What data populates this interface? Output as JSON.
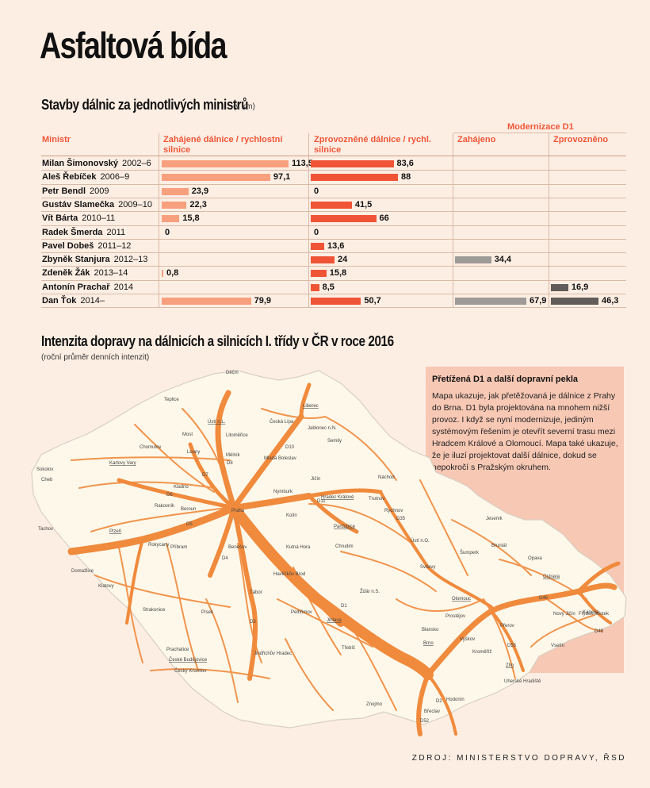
{
  "title": "Asfaltová bída",
  "table_section": {
    "title": "Stavby dálnic za jednotlivých ministrů",
    "unit": "(v km)"
  },
  "headers": {
    "minister": "Ministr",
    "started": "Zahájené dálnice / rychlostní silnice",
    "opened": "Zprovozněné dálnice / rychl. silnice",
    "d1_group": "Modernizace D1",
    "d1_started": "Zahájeno",
    "d1_opened": "Zprovozněno"
  },
  "rows": [
    {
      "name": "Milan Šimonovský",
      "term": "2002–6",
      "started": "113,5",
      "opened": "83,6",
      "d1_started": "",
      "d1_opened": ""
    },
    {
      "name": "Aleš Řebíček",
      "term": "2006–9",
      "started": "97,1",
      "opened": "88",
      "d1_started": "",
      "d1_opened": ""
    },
    {
      "name": "Petr Bendl",
      "term": "2009",
      "started": "23,9",
      "opened": "0",
      "d1_started": "",
      "d1_opened": ""
    },
    {
      "name": "Gustáv Slamečka",
      "term": "2009–10",
      "started": "22,3",
      "opened": "41,5",
      "d1_started": "",
      "d1_opened": ""
    },
    {
      "name": "Vít Bárta",
      "term": "2010–11",
      "started": "15,8",
      "opened": "66",
      "d1_started": "",
      "d1_opened": ""
    },
    {
      "name": "Radek Šmerda",
      "term": "2011",
      "started": "0",
      "opened": "0",
      "d1_started": "",
      "d1_opened": ""
    },
    {
      "name": "Pavel Dobeš",
      "term": "2011–12",
      "started": "",
      "opened": "13,6",
      "d1_started": "",
      "d1_opened": ""
    },
    {
      "name": "Zbyněk Stanjura",
      "term": "2012–13",
      "started": "",
      "opened": "24",
      "d1_started": "34,4",
      "d1_opened": ""
    },
    {
      "name": "Zdeněk Žák",
      "term": "2013–14",
      "started": "0,8",
      "opened": "15,8",
      "d1_started": "",
      "d1_opened": ""
    },
    {
      "name": "Antonín Prachař",
      "term": "2014",
      "started": "",
      "opened": "8,5",
      "d1_started": "",
      "d1_opened": "16,9"
    },
    {
      "name": "Dan Ťok",
      "term": "2014–",
      "started": "79,9",
      "opened": "50,7",
      "d1_started": "67,9",
      "d1_opened": "46,3"
    }
  ],
  "chart_data": {
    "type": "bar",
    "categories": [
      "Milan Šimonovský",
      "Aleš Řebíček",
      "Petr Bendl",
      "Gustáv Slamečka",
      "Vít Bárta",
      "Radek Šmerda",
      "Pavel Dobeš",
      "Zbyněk Stanjura",
      "Zdeněk Žák",
      "Antonín Prachař",
      "Dan Ťok"
    ],
    "series": [
      {
        "name": "Zahájené dálnice / rychlostní silnice",
        "values": [
          113.5,
          97.1,
          23.9,
          22.3,
          15.8,
          0,
          null,
          null,
          0.8,
          null,
          79.9
        ],
        "color": "#f7a07e"
      },
      {
        "name": "Zprovozněné dálnice / rychl. silnice",
        "values": [
          83.6,
          88,
          0,
          41.5,
          66,
          0,
          13.6,
          24,
          15.8,
          8.5,
          50.7
        ],
        "color": "#ef5436"
      },
      {
        "name": "Zahájeno",
        "values": [
          null,
          null,
          null,
          null,
          null,
          null,
          null,
          34.4,
          null,
          null,
          67.9
        ],
        "color": "#9e9a98"
      },
      {
        "name": "Zprovozněno",
        "values": [
          null,
          null,
          null,
          null,
          null,
          null,
          null,
          null,
          null,
          16.9,
          46.3
        ],
        "color": "#615b59"
      }
    ],
    "orientation": "horizontal",
    "unit": "km"
  },
  "map_section": {
    "title": "Intenzita dopravy na dálnicích a silnicích I. třídy v ČR v roce 2016",
    "subtitle": "(roční průměr denních intenzit)"
  },
  "infobox": {
    "title": "Přetížená D1 a další dopravní pekla",
    "text": "Mapa ukazuje, jak přetěžovaná je dálnice z Prahy do Brna. D1 byla projektována na mnohem nižší provoz. I když se nyní modernizuje, jediným systémovým řešením je otevřít severní trasu mezi Hradcem Králové a Olomoucí. Mapa také ukazuje, že je iluzí projektovat další dálnice, dokud se nepokročí s Pražským okruhem."
  },
  "cities": [
    {
      "name": "Děčín",
      "u": false
    },
    {
      "name": "Liberec",
      "u": true
    },
    {
      "name": "Teplice",
      "u": false
    },
    {
      "name": "Ústí n.L.",
      "u": true
    },
    {
      "name": "Česká Lípa",
      "u": false
    },
    {
      "name": "Jablonec n.N.",
      "u": false
    },
    {
      "name": "Semily",
      "u": false
    },
    {
      "name": "Chomutov",
      "u": false
    },
    {
      "name": "Most",
      "u": false
    },
    {
      "name": "Litoměřice",
      "u": false
    },
    {
      "name": "Louny",
      "u": false
    },
    {
      "name": "Sokolov",
      "u": false
    },
    {
      "name": "Karlovy Vary",
      "u": true
    },
    {
      "name": "Mělník",
      "u": false
    },
    {
      "name": "Mladá Boleslav",
      "u": false
    },
    {
      "name": "Jičín",
      "u": false
    },
    {
      "name": "Náchod",
      "u": false
    },
    {
      "name": "Cheb",
      "u": false
    },
    {
      "name": "Rakovník",
      "u": false
    },
    {
      "name": "Kladno",
      "u": false
    },
    {
      "name": "Nymburk",
      "u": false
    },
    {
      "name": "Hradec Králové",
      "u": true
    },
    {
      "name": "Trutnov",
      "u": false
    },
    {
      "name": "Beroun",
      "u": false
    },
    {
      "name": "Praha",
      "u": false
    },
    {
      "name": "Kolín",
      "u": false
    },
    {
      "name": "Pardubice",
      "u": true
    },
    {
      "name": "Rychnov",
      "u": false
    },
    {
      "name": "Jeseník",
      "u": false
    },
    {
      "name": "Tachov",
      "u": false
    },
    {
      "name": "Plzeň",
      "u": true
    },
    {
      "name": "Rokycany",
      "u": false
    },
    {
      "name": "Příbram",
      "u": false
    },
    {
      "name": "Benešov",
      "u": false
    },
    {
      "name": "Kutná Hora",
      "u": false
    },
    {
      "name": "Chrudim",
      "u": false
    },
    {
      "name": "Ústí n.O.",
      "u": false
    },
    {
      "name": "Bruntál",
      "u": false
    },
    {
      "name": "Šumperk",
      "u": false
    },
    {
      "name": "Opava",
      "u": false
    },
    {
      "name": "Domažlice",
      "u": false
    },
    {
      "name": "Havlíčkův Brod",
      "u": false
    },
    {
      "name": "Svitavy",
      "u": false
    },
    {
      "name": "Ostrava",
      "u": true
    },
    {
      "name": "Klatovy",
      "u": false
    },
    {
      "name": "Tábor",
      "u": false
    },
    {
      "name": "Žďár n.S.",
      "u": false
    },
    {
      "name": "Olomouc",
      "u": true
    },
    {
      "name": "Karviná",
      "u": false
    },
    {
      "name": "Nový Jičín",
      "u": false
    },
    {
      "name": "Frýdek-Místek",
      "u": false
    },
    {
      "name": "Strakonice",
      "u": false
    },
    {
      "name": "Písek",
      "u": false
    },
    {
      "name": "Pelhřimov",
      "u": false
    },
    {
      "name": "Jihlava",
      "u": true
    },
    {
      "name": "Blansko",
      "u": false
    },
    {
      "name": "Prostějov",
      "u": false
    },
    {
      "name": "Přerov",
      "u": false
    },
    {
      "name": "Vyškov",
      "u": false
    },
    {
      "name": "Vsetín",
      "u": false
    },
    {
      "name": "Prachatice",
      "u": false
    },
    {
      "name": "Jindřichův Hradec",
      "u": false
    },
    {
      "name": "Třebíč",
      "u": false
    },
    {
      "name": "Brno",
      "u": true
    },
    {
      "name": "Kroměříž",
      "u": false
    },
    {
      "name": "Zlín",
      "u": true
    },
    {
      "name": "České Budějovice",
      "u": true
    },
    {
      "name": "Český Krumlov",
      "u": false
    },
    {
      "name": "Uherské Hradiště",
      "u": false
    },
    {
      "name": "Hodonín",
      "u": false
    },
    {
      "name": "Znojmo",
      "u": false
    },
    {
      "name": "Břeclav",
      "u": false
    }
  ],
  "road_labels": [
    "D8",
    "D10",
    "D11",
    "D5",
    "D6",
    "D7",
    "D4",
    "D3",
    "D1",
    "D2",
    "D35",
    "D46",
    "D55",
    "D48",
    "D52"
  ],
  "source": "ZDROJ: MINISTERSTVO DOPRAVY, ŘSD"
}
